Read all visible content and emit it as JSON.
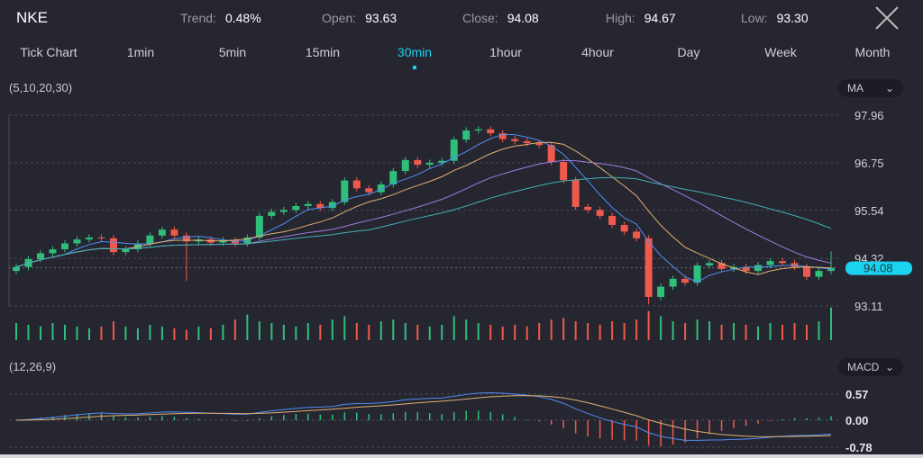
{
  "header": {
    "symbol": "NKE",
    "stats": [
      {
        "label": "Trend:",
        "value": "0.48%"
      },
      {
        "label": "Open:",
        "value": "93.63"
      },
      {
        "label": "Close:",
        "value": "94.08"
      },
      {
        "label": "High:",
        "value": "94.67"
      },
      {
        "label": "Low:",
        "value": "93.30"
      }
    ]
  },
  "tabs": [
    {
      "label": "Tick Chart"
    },
    {
      "label": "1min"
    },
    {
      "label": "5min"
    },
    {
      "label": "15min"
    },
    {
      "label": "30min",
      "active": true
    },
    {
      "label": "1hour"
    },
    {
      "label": "4hour"
    },
    {
      "label": "Day"
    },
    {
      "label": "Week"
    },
    {
      "label": "Month"
    }
  ],
  "main_indicator": {
    "params": "(5,10,20,30)",
    "selector": "MA"
  },
  "sub_indicator": {
    "params": "(12,26,9)",
    "selector": "MACD"
  },
  "colors": {
    "up": "#2fbf7a",
    "down": "#ef5a4c",
    "accent": "#19d3f0",
    "ma5": "#4f8ef7",
    "ma10": "#e0b070",
    "ma20": "#a07ce0",
    "ma30": "#3fb0b0",
    "dif": "#4f8ef7",
    "dea": "#e0b070"
  },
  "chart_data": [
    {
      "type": "candlestick",
      "title": "",
      "ylim": [
        93.11,
        97.96
      ],
      "y_ticks": [
        "97.96",
        "96.75",
        "95.54",
        "94.32",
        "93.11"
      ],
      "last_price": "94.08",
      "close": [
        94.1,
        94.3,
        94.45,
        94.55,
        94.7,
        94.8,
        94.85,
        94.83,
        94.48,
        94.55,
        94.7,
        94.9,
        95.05,
        94.9,
        94.75,
        94.8,
        94.72,
        94.78,
        94.7,
        94.85,
        95.4,
        95.5,
        95.55,
        95.65,
        95.7,
        95.6,
        95.75,
        96.3,
        96.1,
        96.0,
        96.2,
        96.54,
        96.82,
        96.7,
        96.75,
        96.8,
        97.34,
        97.57,
        97.6,
        97.5,
        97.35,
        97.3,
        97.25,
        97.2,
        96.77,
        96.31,
        95.63,
        95.55,
        95.4,
        95.17,
        95.0,
        94.83,
        93.34,
        93.6,
        93.8,
        93.7,
        94.14,
        94.2,
        94.05,
        94.1,
        94.0,
        94.15,
        94.25,
        94.2,
        94.1,
        93.85,
        94.0,
        94.08
      ],
      "volume": [
        0.5,
        0.45,
        0.4,
        0.5,
        0.45,
        0.4,
        0.35,
        0.4,
        0.55,
        0.4,
        0.35,
        0.45,
        0.4,
        0.35,
        0.3,
        0.4,
        0.35,
        0.45,
        0.6,
        0.75,
        0.55,
        0.5,
        0.45,
        0.4,
        0.5,
        0.45,
        0.6,
        0.7,
        0.5,
        0.45,
        0.55,
        0.6,
        0.5,
        0.45,
        0.4,
        0.45,
        0.7,
        0.6,
        0.5,
        0.45,
        0.4,
        0.45,
        0.4,
        0.5,
        0.6,
        0.65,
        0.55,
        0.5,
        0.45,
        0.55,
        0.5,
        0.6,
        0.85,
        0.7,
        0.55,
        0.5,
        0.6,
        0.55,
        0.45,
        0.5,
        0.45,
        0.4,
        0.5,
        0.45,
        0.5,
        0.45,
        0.55,
        0.95
      ],
      "series": [
        {
          "name": "MA5"
        },
        {
          "name": "MA10"
        },
        {
          "name": "MA20"
        },
        {
          "name": "MA30"
        }
      ]
    },
    {
      "type": "macd",
      "ylim": [
        -0.78,
        0.57
      ],
      "y_ticks": [
        "0.57",
        "0.00",
        "-0.78"
      ],
      "params": [
        12,
        26,
        9
      ]
    }
  ]
}
